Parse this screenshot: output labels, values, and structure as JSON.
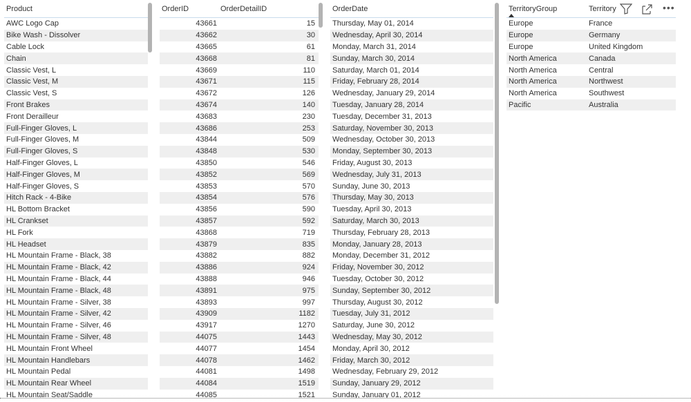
{
  "products": {
    "header": "Product",
    "rows": [
      "AWC Logo Cap",
      "Bike Wash - Dissolver",
      "Cable Lock",
      "Chain",
      "Classic Vest, L",
      "Classic Vest, M",
      "Classic Vest, S",
      "Front Brakes",
      "Front Derailleur",
      "Full-Finger Gloves, L",
      "Full-Finger Gloves, M",
      "Full-Finger Gloves, S",
      "Half-Finger Gloves, L",
      "Half-Finger Gloves, M",
      "Half-Finger Gloves, S",
      "Hitch Rack - 4-Bike",
      "HL Bottom Bracket",
      "HL Crankset",
      "HL Fork",
      "HL Headset",
      "HL Mountain Frame - Black, 38",
      "HL Mountain Frame - Black, 42",
      "HL Mountain Frame - Black, 44",
      "HL Mountain Frame - Black, 48",
      "HL Mountain Frame - Silver, 38",
      "HL Mountain Frame - Silver, 42",
      "HL Mountain Frame - Silver, 46",
      "HL Mountain Frame - Silver, 48",
      "HL Mountain Front Wheel",
      "HL Mountain Handlebars",
      "HL Mountain Pedal",
      "HL Mountain Rear Wheel",
      "HL Mountain Seat/Saddle"
    ]
  },
  "orders": {
    "headers": [
      "OrderID",
      "OrderDetailID"
    ],
    "rows": [
      [
        "43661",
        "15"
      ],
      [
        "43662",
        "30"
      ],
      [
        "43665",
        "61"
      ],
      [
        "43668",
        "81"
      ],
      [
        "43669",
        "110"
      ],
      [
        "43671",
        "115"
      ],
      [
        "43672",
        "126"
      ],
      [
        "43674",
        "140"
      ],
      [
        "43683",
        "230"
      ],
      [
        "43686",
        "253"
      ],
      [
        "43844",
        "509"
      ],
      [
        "43848",
        "530"
      ],
      [
        "43850",
        "546"
      ],
      [
        "43852",
        "569"
      ],
      [
        "43853",
        "570"
      ],
      [
        "43854",
        "576"
      ],
      [
        "43856",
        "590"
      ],
      [
        "43857",
        "592"
      ],
      [
        "43868",
        "719"
      ],
      [
        "43879",
        "835"
      ],
      [
        "43882",
        "882"
      ],
      [
        "43886",
        "924"
      ],
      [
        "43888",
        "946"
      ],
      [
        "43891",
        "975"
      ],
      [
        "43893",
        "997"
      ],
      [
        "43909",
        "1182"
      ],
      [
        "43917",
        "1270"
      ],
      [
        "44075",
        "1443"
      ],
      [
        "44077",
        "1454"
      ],
      [
        "44078",
        "1462"
      ],
      [
        "44081",
        "1498"
      ],
      [
        "44084",
        "1519"
      ],
      [
        "44085",
        "1521"
      ]
    ]
  },
  "dates": {
    "header": "OrderDate",
    "rows": [
      "Thursday, May 01, 2014",
      "Wednesday, April 30, 2014",
      "Monday, March 31, 2014",
      "Sunday, March 30, 2014",
      "Saturday, March 01, 2014",
      "Friday, February 28, 2014",
      "Wednesday, January 29, 2014",
      "Tuesday, January 28, 2014",
      "Tuesday, December 31, 2013",
      "Saturday, November 30, 2013",
      "Wednesday, October 30, 2013",
      "Monday, September 30, 2013",
      "Friday, August 30, 2013",
      "Wednesday, July 31, 2013",
      "Sunday, June 30, 2013",
      "Thursday, May 30, 2013",
      "Tuesday, April 30, 2013",
      "Saturday, March 30, 2013",
      "Thursday, February 28, 2013",
      "Monday, January 28, 2013",
      "Monday, December 31, 2012",
      "Friday, November 30, 2012",
      "Tuesday, October 30, 2012",
      "Sunday, September 30, 2012",
      "Thursday, August 30, 2012",
      "Tuesday, July 31, 2012",
      "Saturday, June 30, 2012",
      "Wednesday, May 30, 2012",
      "Monday, April 30, 2012",
      "Friday, March 30, 2012",
      "Wednesday, February 29, 2012",
      "Sunday, January 29, 2012",
      "Sunday, January 01, 2012"
    ]
  },
  "territory": {
    "headers": [
      "TerritoryGroup",
      "Territory"
    ],
    "sort": "ascending",
    "rows": [
      [
        "Europe",
        "France"
      ],
      [
        "Europe",
        "Germany"
      ],
      [
        "Europe",
        "United Kingdom"
      ],
      [
        "North America",
        "Canada"
      ],
      [
        "North America",
        "Central"
      ],
      [
        "North America",
        "Northwest"
      ],
      [
        "North America",
        "Southwest"
      ],
      [
        "Pacific",
        "Australia"
      ]
    ],
    "icons": [
      "filter-icon",
      "focus-mode-icon",
      "more-options-icon"
    ]
  }
}
